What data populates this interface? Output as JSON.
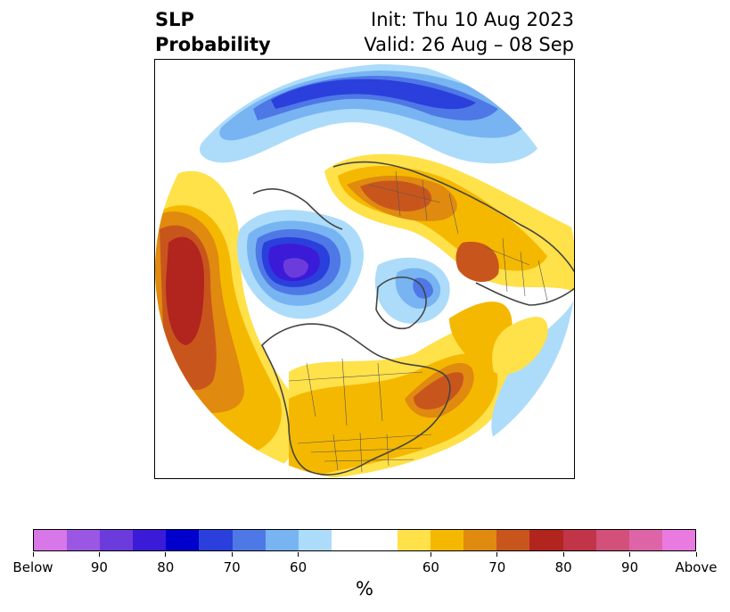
{
  "title": {
    "left_line1": "SLP",
    "left_line2": "Probability",
    "right_line1": "Init: Thu 10 Aug 2023",
    "right_line2": "Valid: 26 Aug – 08 Sep"
  },
  "colorbar": {
    "colors": [
      "#d877e8",
      "#9a57e3",
      "#6c3bdc",
      "#3b1bd8",
      "#0000cc",
      "#2a3fdc",
      "#4e78e6",
      "#78b4f2",
      "#acdcfa",
      "#ffffff",
      "#ffffff",
      "#ffe14a",
      "#f5b800",
      "#e08a10",
      "#c8561c",
      "#b2241e",
      "#c23448",
      "#d2507a",
      "#de64a8",
      "#e87ae0"
    ],
    "tick_labels": [
      "Below",
      "90",
      "80",
      "70",
      "60",
      "60",
      "70",
      "80",
      "90",
      "Above"
    ],
    "unit_label": "%"
  }
}
